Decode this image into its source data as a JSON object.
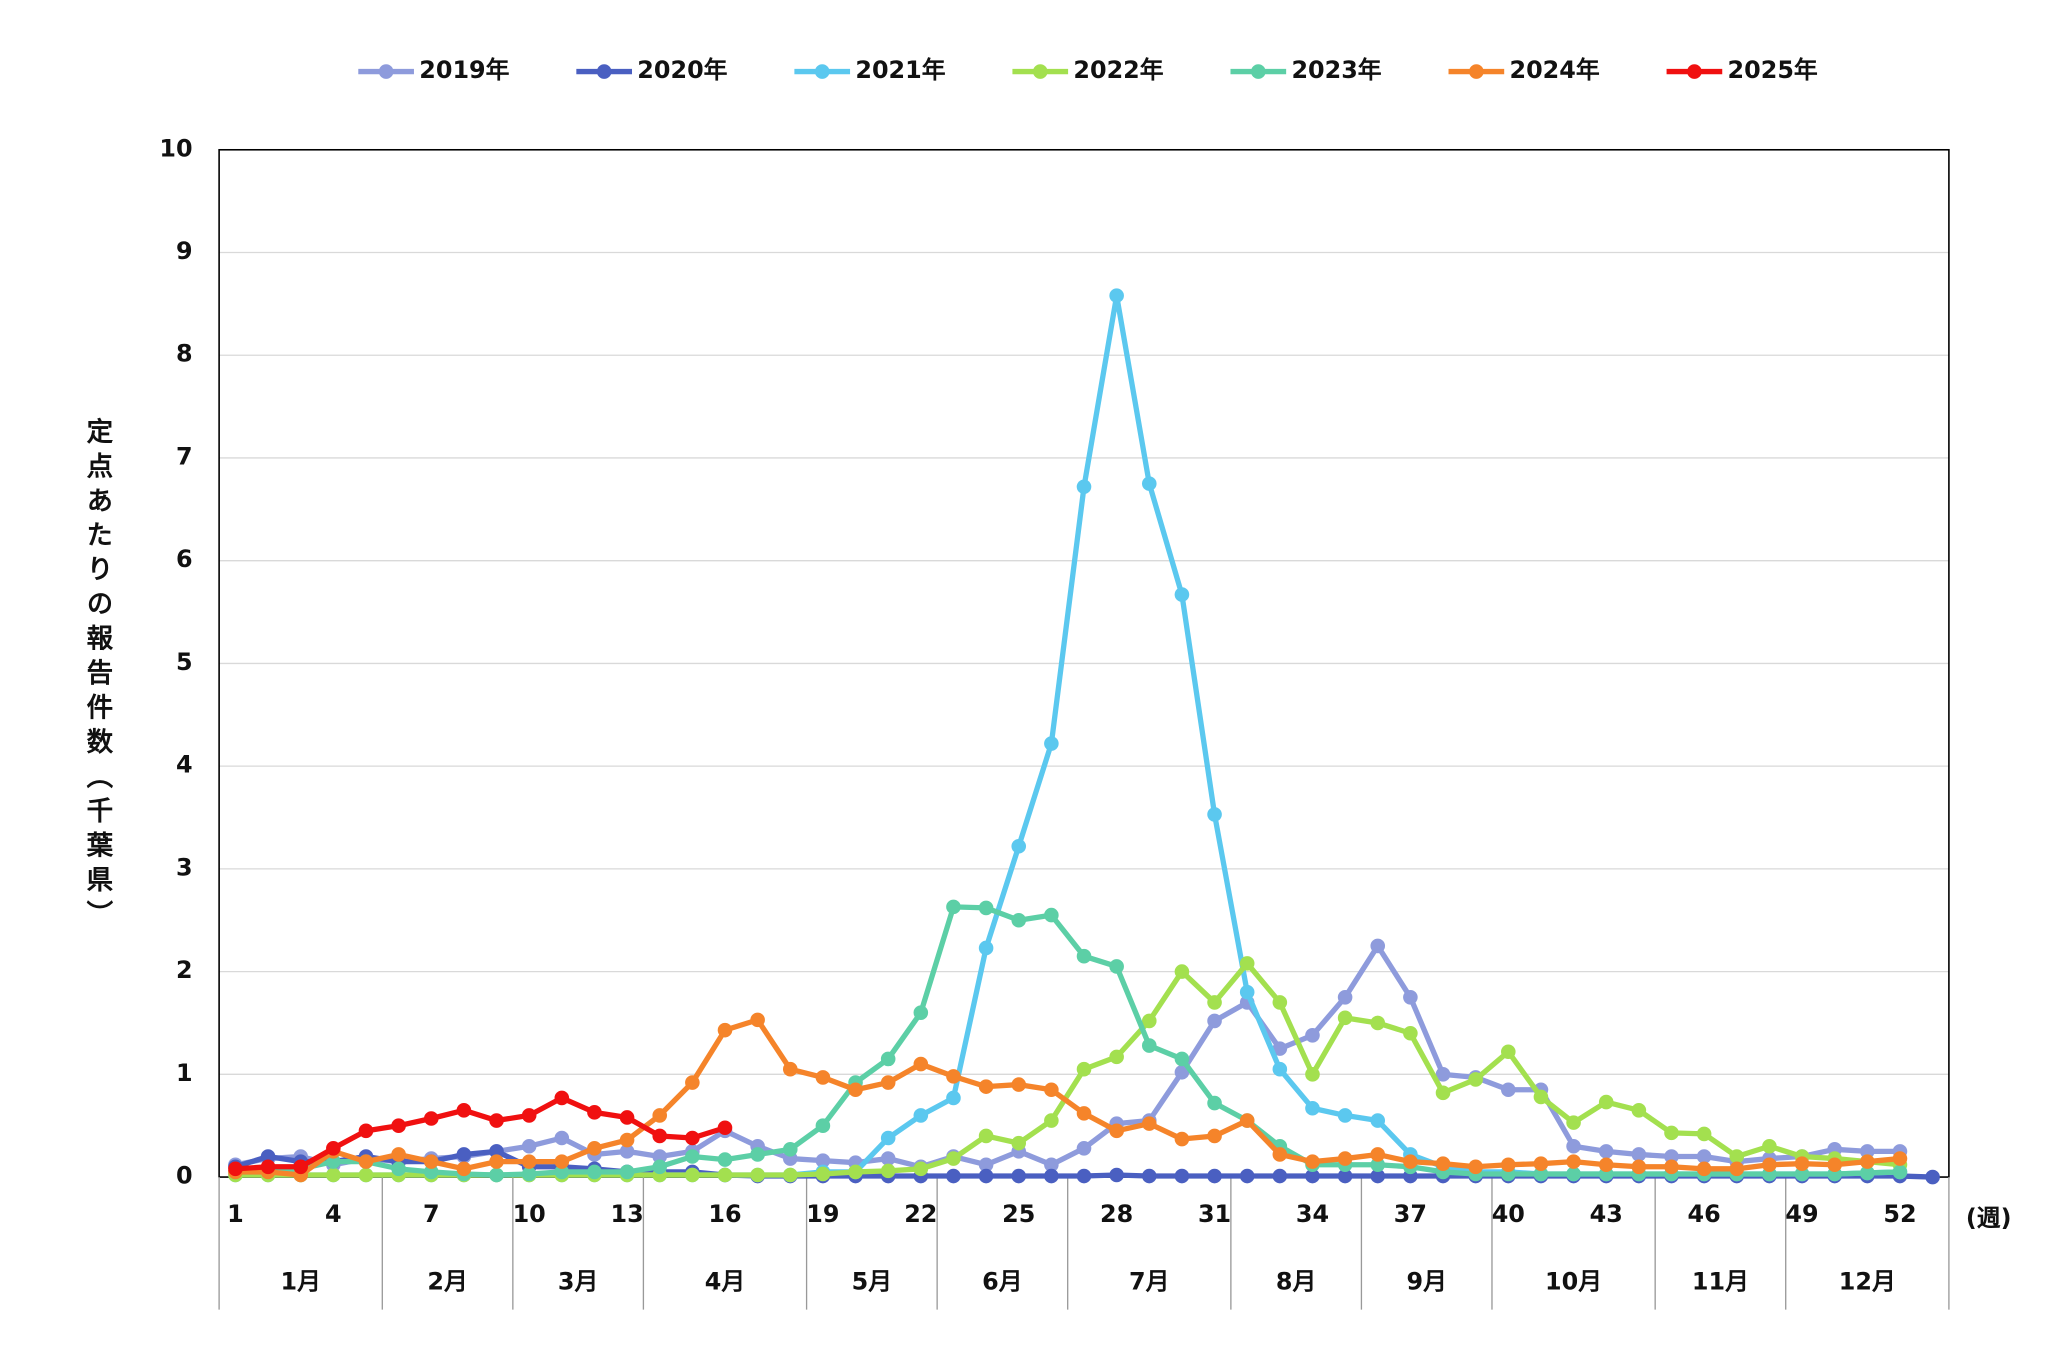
{
  "chart_data": {
    "type": "line",
    "x_unit_label": "(週)",
    "y_label": "定点あたりの報告件数（千葉県）",
    "x": [
      1,
      2,
      3,
      4,
      5,
      6,
      7,
      8,
      9,
      10,
      11,
      12,
      13,
      14,
      15,
      16,
      17,
      18,
      19,
      20,
      21,
      22,
      23,
      24,
      25,
      26,
      27,
      28,
      29,
      30,
      31,
      32,
      33,
      34,
      35,
      36,
      37,
      38,
      39,
      40,
      41,
      42,
      43,
      44,
      45,
      46,
      47,
      48,
      49,
      50,
      51,
      52,
      53
    ],
    "xlim": [
      0.5,
      53.5
    ],
    "xticks": [
      1,
      4,
      7,
      10,
      13,
      16,
      19,
      22,
      25,
      28,
      31,
      34,
      37,
      40,
      43,
      46,
      49,
      52
    ],
    "ylim": [
      0,
      10
    ],
    "yticks": [
      0,
      1,
      2,
      3,
      4,
      5,
      6,
      7,
      8,
      9,
      10
    ],
    "grid": true,
    "legend": "top",
    "months": [
      {
        "label": "1月",
        "start": 0.5,
        "end": 5.5
      },
      {
        "label": "2月",
        "start": 5.5,
        "end": 9.5
      },
      {
        "label": "3月",
        "start": 9.5,
        "end": 13.5
      },
      {
        "label": "4月",
        "start": 13.5,
        "end": 18.5
      },
      {
        "label": "5月",
        "start": 18.5,
        "end": 22.5
      },
      {
        "label": "6月",
        "start": 22.5,
        "end": 26.5
      },
      {
        "label": "7月",
        "start": 26.5,
        "end": 31.5
      },
      {
        "label": "8月",
        "start": 31.5,
        "end": 35.5
      },
      {
        "label": "9月",
        "start": 35.5,
        "end": 39.5
      },
      {
        "label": "10月",
        "start": 39.5,
        "end": 44.5
      },
      {
        "label": "11月",
        "start": 44.5,
        "end": 48.5
      },
      {
        "label": "12月",
        "start": 48.5,
        "end": 53.5
      }
    ],
    "series": [
      {
        "name": "2019年",
        "color": "#8e9bdc",
        "values": [
          0.12,
          0.18,
          0.2,
          0.12,
          0.18,
          0.15,
          0.18,
          0.2,
          0.25,
          0.3,
          0.38,
          0.22,
          0.25,
          0.2,
          0.25,
          0.45,
          0.3,
          0.18,
          0.16,
          0.14,
          0.18,
          0.1,
          0.2,
          0.12,
          0.25,
          0.12,
          0.28,
          0.52,
          0.55,
          1.02,
          1.52,
          1.7,
          1.25,
          1.38,
          1.75,
          2.25,
          1.75,
          1.0,
          0.97,
          0.85,
          0.85,
          0.3,
          0.25,
          0.22,
          0.2,
          0.2,
          0.15,
          0.18,
          0.2,
          0.27,
          0.25,
          0.25,
          null
        ]
      },
      {
        "name": "2020年",
        "color": "#4a5fc1",
        "values": [
          0.1,
          0.2,
          0.15,
          0.15,
          0.2,
          0.15,
          0.15,
          0.22,
          0.25,
          0.1,
          0.1,
          0.08,
          0.05,
          0.05,
          0.05,
          0.02,
          0.01,
          0.01,
          0.01,
          0.01,
          0.01,
          0.01,
          0.01,
          0.01,
          0.01,
          0.01,
          0.01,
          0.02,
          0.01,
          0.01,
          0.01,
          0.01,
          0.01,
          0.01,
          0.01,
          0.01,
          0.01,
          0.01,
          0.01,
          0.01,
          0.01,
          0.01,
          0.01,
          0.01,
          0.01,
          0.01,
          0.01,
          0.01,
          0.01,
          0.01,
          0.01,
          0.01,
          0
        ]
      },
      {
        "name": "2021年",
        "color": "#5bc8ef",
        "values": [
          0.02,
          0.02,
          0.02,
          0.02,
          0.02,
          0.02,
          0.02,
          0.02,
          0.02,
          0.02,
          0.02,
          0.02,
          0.02,
          0.02,
          0.02,
          0.02,
          0.02,
          0.02,
          0.05,
          0.05,
          0.38,
          0.6,
          0.77,
          2.23,
          3.22,
          4.22,
          6.72,
          8.58,
          6.75,
          5.67,
          3.53,
          1.8,
          1.05,
          0.67,
          0.6,
          0.55,
          0.22,
          0.1,
          0.05,
          0.05,
          0.03,
          0.03,
          0.03,
          0.03,
          0.03,
          0.03,
          0.03,
          0.03,
          0.03,
          0.03,
          0.04,
          0.05,
          null
        ]
      },
      {
        "name": "2022年",
        "color": "#a3e04f",
        "values": [
          0.02,
          0.02,
          0.02,
          0.02,
          0.02,
          0.02,
          0.02,
          0.02,
          0.02,
          0.02,
          0.02,
          0.02,
          0.02,
          0.02,
          0.02,
          0.02,
          0.02,
          0.02,
          0.03,
          0.05,
          0.06,
          0.08,
          0.18,
          0.4,
          0.33,
          0.55,
          1.05,
          1.17,
          1.52,
          2.0,
          1.7,
          2.08,
          1.7,
          1.0,
          1.55,
          1.5,
          1.4,
          0.82,
          0.95,
          1.22,
          0.78,
          0.53,
          0.73,
          0.65,
          0.43,
          0.42,
          0.2,
          0.3,
          0.2,
          0.18,
          0.15,
          0.12,
          null
        ]
      },
      {
        "name": "2023年",
        "color": "#5ccfa6",
        "values": [
          0.05,
          0.05,
          0.08,
          0.15,
          0.15,
          0.08,
          0.05,
          0.03,
          0.02,
          0.03,
          0.05,
          0.05,
          0.05,
          0.1,
          0.2,
          0.17,
          0.22,
          0.27,
          0.5,
          0.92,
          1.15,
          1.6,
          2.63,
          2.62,
          2.5,
          2.55,
          2.15,
          2.05,
          1.28,
          1.15,
          0.72,
          0.55,
          0.3,
          0.12,
          0.12,
          0.12,
          0.1,
          0.05,
          0.03,
          0.03,
          0.03,
          0.03,
          0.03,
          0.03,
          0.03,
          0.03,
          0.03,
          0.03,
          0.03,
          0.03,
          0.04,
          0.05,
          null
        ]
      },
      {
        "name": "2024年",
        "color": "#f5842a",
        "values": [
          0.05,
          0.05,
          0.02,
          0.25,
          0.15,
          0.22,
          0.15,
          0.08,
          0.15,
          0.15,
          0.15,
          0.28,
          0.36,
          0.6,
          0.92,
          1.43,
          1.53,
          1.05,
          0.97,
          0.85,
          0.92,
          1.1,
          0.98,
          0.88,
          0.9,
          0.85,
          0.62,
          0.45,
          0.52,
          0.37,
          0.4,
          0.55,
          0.22,
          0.15,
          0.18,
          0.22,
          0.15,
          0.13,
          0.1,
          0.12,
          0.13,
          0.15,
          0.12,
          0.1,
          0.1,
          0.08,
          0.08,
          0.12,
          0.13,
          0.12,
          0.15,
          0.18,
          null
        ]
      },
      {
        "name": "2025年",
        "color": "#f01010",
        "values": [
          0.08,
          0.1,
          0.1,
          0.28,
          0.45,
          0.5,
          0.57,
          0.65,
          0.55,
          0.6,
          0.77,
          0.63,
          0.58,
          0.4,
          0.38,
          0.48,
          null,
          null,
          null,
          null,
          null,
          null,
          null,
          null,
          null,
          null,
          null,
          null,
          null,
          null,
          null,
          null,
          null,
          null,
          null,
          null,
          null,
          null,
          null,
          null,
          null,
          null,
          null,
          null,
          null,
          null,
          null,
          null,
          null,
          null,
          null,
          null,
          null
        ]
      }
    ]
  }
}
